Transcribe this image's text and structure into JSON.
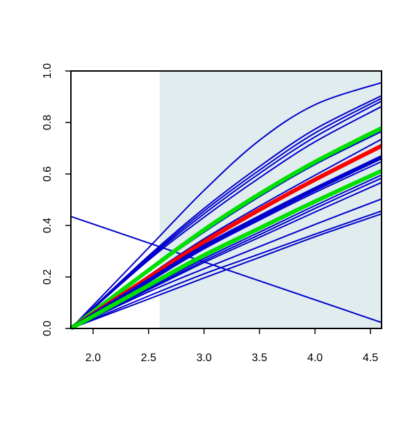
{
  "chart_data": {
    "type": "line",
    "title": "",
    "xlabel": "",
    "ylabel": "",
    "xlim": [
      1.8,
      4.6
    ],
    "ylim": [
      0.0,
      1.0
    ],
    "x_ticks": [
      2.0,
      2.5,
      3.0,
      3.5,
      4.0,
      4.5
    ],
    "x_tick_labels": [
      "2.0",
      "2.5",
      "3.0",
      "3.5",
      "4.0",
      "4.5"
    ],
    "y_ticks": [
      0.0,
      0.2,
      0.4,
      0.6,
      0.8,
      1.0
    ],
    "y_tick_labels": [
      "0.0",
      "0.2",
      "0.4",
      "0.6",
      "0.8",
      "1.0"
    ],
    "grid": false,
    "legend": "none",
    "shaded_region": {
      "x_from": 2.6,
      "x_to": 4.6,
      "color": "#e0eced"
    },
    "series": [
      {
        "color": "#0000cc",
        "emphasis": "normal",
        "points": [
          [
            1.8,
            0.0
          ],
          [
            2.5,
            0.313
          ],
          [
            3.0,
            0.536
          ],
          [
            3.5,
            0.731
          ],
          [
            4.0,
            0.869
          ],
          [
            4.6,
            0.955
          ]
        ]
      },
      {
        "color": "#0000cc",
        "emphasis": "normal",
        "points": [
          [
            1.8,
            0.0
          ],
          [
            2.5,
            0.282
          ],
          [
            3.0,
            0.466
          ],
          [
            3.5,
            0.629
          ],
          [
            4.0,
            0.774
          ],
          [
            4.6,
            0.904
          ]
        ]
      },
      {
        "color": "#0000cc",
        "emphasis": "normal",
        "points": [
          [
            1.8,
            0.0
          ],
          [
            2.5,
            0.276
          ],
          [
            3.0,
            0.456
          ],
          [
            3.5,
            0.615
          ],
          [
            4.0,
            0.759
          ],
          [
            4.6,
            0.894
          ]
        ]
      },
      {
        "color": "#0000cc",
        "emphasis": "normal",
        "points": [
          [
            1.8,
            0.0
          ],
          [
            2.5,
            0.271
          ],
          [
            3.0,
            0.445
          ],
          [
            3.5,
            0.602
          ],
          [
            4.0,
            0.744
          ],
          [
            4.6,
            0.883
          ]
        ]
      },
      {
        "color": "#0000cc",
        "emphasis": "normal",
        "points": [
          [
            1.8,
            0.0
          ],
          [
            2.5,
            0.265
          ],
          [
            3.0,
            0.432
          ],
          [
            3.5,
            0.585
          ],
          [
            4.0,
            0.725
          ],
          [
            4.6,
            0.862
          ]
        ]
      },
      {
        "color": "#0000cc",
        "emphasis": "normal",
        "points": [
          [
            1.8,
            0.0
          ],
          [
            2.5,
            0.223
          ],
          [
            3.0,
            0.374
          ],
          [
            3.5,
            0.512
          ],
          [
            4.0,
            0.637
          ],
          [
            4.6,
            0.765
          ]
        ]
      },
      {
        "color": "#00e000",
        "emphasis": "thick",
        "points": [
          [
            1.8,
            0.0
          ],
          [
            2.5,
            0.226
          ],
          [
            3.0,
            0.383
          ],
          [
            3.5,
            0.522
          ],
          [
            4.0,
            0.647
          ],
          [
            4.6,
            0.778
          ]
        ]
      },
      {
        "color": "#0000cc",
        "emphasis": "normal",
        "points": [
          [
            1.8,
            0.0
          ],
          [
            2.5,
            0.205
          ],
          [
            3.0,
            0.348
          ],
          [
            3.5,
            0.475
          ],
          [
            4.0,
            0.595
          ],
          [
            4.6,
            0.735
          ]
        ]
      },
      {
        "color": "#ff0000",
        "emphasis": "thick",
        "points": [
          [
            1.8,
            0.0
          ],
          [
            2.5,
            0.198
          ],
          [
            3.0,
            0.336
          ],
          [
            3.5,
            0.461
          ],
          [
            4.0,
            0.578
          ],
          [
            4.6,
            0.709
          ]
        ]
      },
      {
        "color": "#0000cc",
        "emphasis": "thick",
        "points": [
          [
            1.8,
            0.0
          ],
          [
            2.5,
            0.186
          ],
          [
            3.0,
            0.318
          ],
          [
            3.5,
            0.432
          ],
          [
            4.0,
            0.541
          ],
          [
            4.6,
            0.665
          ]
        ]
      },
      {
        "color": "#0000cc",
        "emphasis": "normal",
        "points": [
          [
            1.8,
            0.0
          ],
          [
            2.5,
            0.182
          ],
          [
            3.0,
            0.309
          ],
          [
            3.5,
            0.421
          ],
          [
            4.0,
            0.528
          ],
          [
            4.6,
            0.648
          ]
        ]
      },
      {
        "color": "#00e000",
        "emphasis": "thick",
        "points": [
          [
            1.8,
            0.0
          ],
          [
            2.5,
            0.167
          ],
          [
            3.0,
            0.284
          ],
          [
            3.5,
            0.389
          ],
          [
            4.0,
            0.493
          ],
          [
            4.6,
            0.612
          ]
        ]
      },
      {
        "color": "#0000cc",
        "emphasis": "normal",
        "points": [
          [
            1.8,
            0.0
          ],
          [
            2.5,
            0.159
          ],
          [
            3.0,
            0.271
          ],
          [
            3.5,
            0.374
          ],
          [
            4.0,
            0.477
          ],
          [
            4.6,
            0.596
          ]
        ]
      },
      {
        "color": "#0000cc",
        "emphasis": "normal",
        "points": [
          [
            1.8,
            0.0
          ],
          [
            2.5,
            0.154
          ],
          [
            3.0,
            0.263
          ],
          [
            3.5,
            0.364
          ],
          [
            4.0,
            0.466
          ],
          [
            4.6,
            0.584
          ]
        ]
      },
      {
        "color": "#0000cc",
        "emphasis": "normal",
        "points": [
          [
            1.8,
            0.0
          ],
          [
            2.5,
            0.15
          ],
          [
            3.0,
            0.256
          ],
          [
            3.5,
            0.354
          ],
          [
            4.0,
            0.452
          ],
          [
            4.6,
            0.567
          ]
        ]
      },
      {
        "color": "#0000cc",
        "emphasis": "normal",
        "points": [
          [
            1.8,
            0.0
          ],
          [
            2.5,
            0.142
          ],
          [
            3.0,
            0.232
          ],
          [
            3.5,
            0.318
          ],
          [
            4.0,
            0.404
          ],
          [
            4.6,
            0.503
          ]
        ]
      },
      {
        "color": "#0000cc",
        "emphasis": "normal",
        "points": [
          [
            1.8,
            0.0
          ],
          [
            2.5,
            0.126
          ],
          [
            3.0,
            0.212
          ],
          [
            3.5,
            0.289
          ],
          [
            4.0,
            0.366
          ],
          [
            4.6,
            0.456
          ]
        ]
      },
      {
        "color": "#0000cc",
        "emphasis": "normal",
        "points": [
          [
            1.8,
            0.0
          ],
          [
            2.5,
            0.114
          ],
          [
            3.0,
            0.196
          ],
          [
            3.5,
            0.276
          ],
          [
            4.0,
            0.356
          ],
          [
            4.6,
            0.445
          ]
        ]
      },
      {
        "color": "#0000cc",
        "emphasis": "normal",
        "points": [
          [
            1.8,
            0.435
          ],
          [
            4.6,
            0.023
          ]
        ]
      }
    ]
  }
}
